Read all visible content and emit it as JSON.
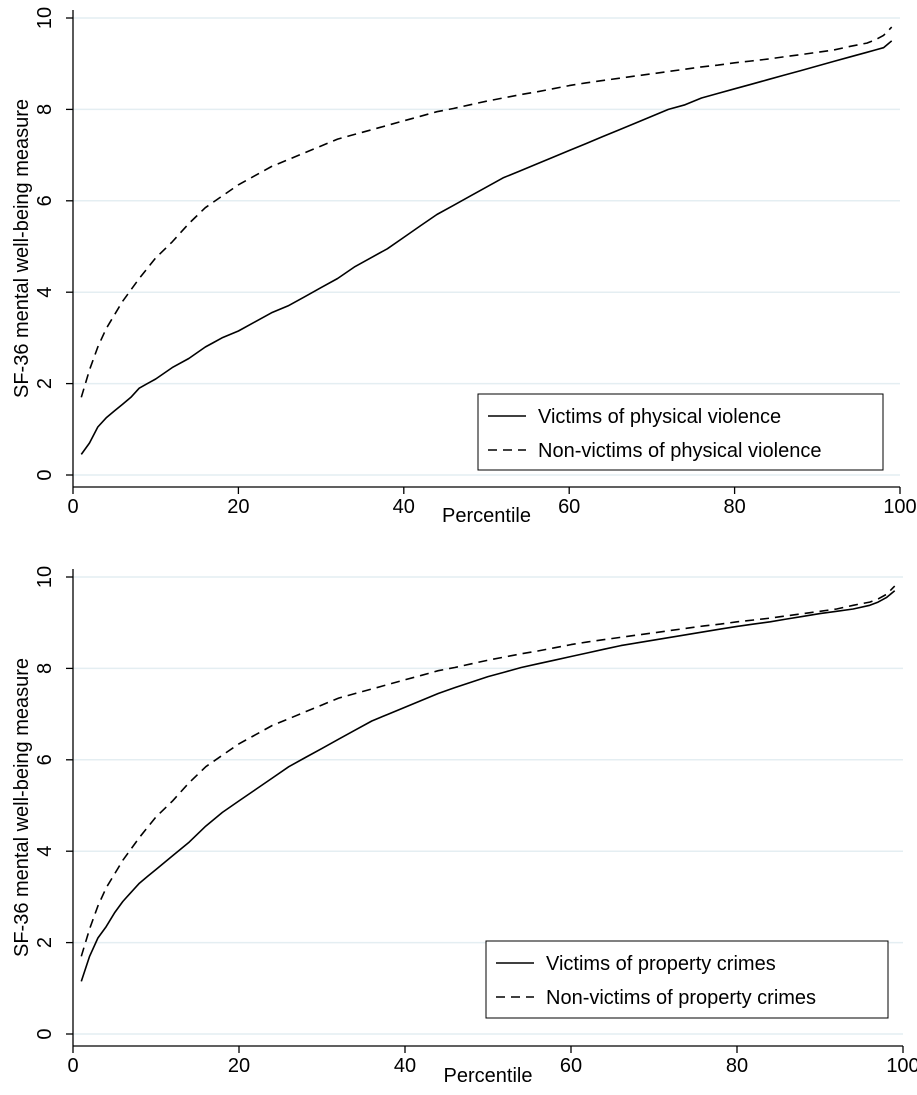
{
  "chart_data": [
    {
      "type": "line",
      "title": "",
      "xlabel": "Percentile",
      "ylabel": "SF-36 mental well-being measure",
      "xlim": [
        0,
        100
      ],
      "ylim": [
        0,
        10
      ],
      "x_ticks": [
        0,
        20,
        40,
        60,
        80,
        100
      ],
      "y_ticks": [
        0,
        2,
        4,
        6,
        8,
        10
      ],
      "grid": "horizontal",
      "legend_position": "bottom-right",
      "series": [
        {
          "name": "Victims of physical violence",
          "style": "solid",
          "x": [
            1,
            2,
            3,
            4,
            5,
            6,
            7,
            8,
            9,
            10,
            12,
            14,
            16,
            17,
            18,
            20,
            22,
            24,
            26,
            28,
            30,
            32,
            34,
            36,
            38,
            40,
            42,
            44,
            46,
            48,
            50,
            52,
            54,
            56,
            58,
            60,
            62,
            64,
            66,
            68,
            70,
            72,
            74,
            76,
            78,
            80,
            82,
            84,
            86,
            88,
            90,
            92,
            94,
            96,
            97,
            98,
            99
          ],
          "values": [
            0.45,
            0.7,
            1.05,
            1.25,
            1.4,
            1.55,
            1.7,
            1.9,
            2.0,
            2.1,
            2.35,
            2.55,
            2.8,
            2.9,
            3.0,
            3.15,
            3.35,
            3.55,
            3.7,
            3.9,
            4.1,
            4.3,
            4.55,
            4.75,
            4.95,
            5.2,
            5.45,
            5.7,
            5.9,
            6.1,
            6.3,
            6.5,
            6.65,
            6.8,
            6.95,
            7.1,
            7.25,
            7.4,
            7.55,
            7.7,
            7.85,
            8.0,
            8.1,
            8.25,
            8.35,
            8.45,
            8.55,
            8.65,
            8.75,
            8.85,
            8.95,
            9.05,
            9.15,
            9.25,
            9.3,
            9.35,
            9.5
          ]
        },
        {
          "name": "Non-victims of physical violence",
          "style": "dashed",
          "x": [
            1,
            2,
            3,
            4,
            5,
            6,
            7,
            8,
            10,
            12,
            14,
            16,
            18,
            20,
            22,
            24,
            26,
            28,
            30,
            32,
            34,
            36,
            38,
            40,
            42,
            44,
            46,
            48,
            50,
            52,
            54,
            56,
            58,
            60,
            62,
            64,
            66,
            68,
            70,
            72,
            74,
            76,
            78,
            80,
            82,
            84,
            86,
            88,
            90,
            92,
            94,
            96,
            97,
            98,
            99
          ],
          "values": [
            1.7,
            2.3,
            2.8,
            3.2,
            3.5,
            3.8,
            4.05,
            4.3,
            4.75,
            5.1,
            5.5,
            5.85,
            6.1,
            6.35,
            6.55,
            6.75,
            6.9,
            7.05,
            7.2,
            7.35,
            7.45,
            7.55,
            7.65,
            7.75,
            7.85,
            7.95,
            8.02,
            8.1,
            8.18,
            8.25,
            8.32,
            8.38,
            8.45,
            8.52,
            8.58,
            8.63,
            8.68,
            8.73,
            8.78,
            8.83,
            8.88,
            8.93,
            8.97,
            9.02,
            9.06,
            9.1,
            9.15,
            9.2,
            9.25,
            9.3,
            9.38,
            9.45,
            9.52,
            9.62,
            9.8
          ]
        }
      ]
    },
    {
      "type": "line",
      "title": "",
      "xlabel": "Percentile",
      "ylabel": "SF-36 mental well-being measure",
      "xlim": [
        0,
        100
      ],
      "ylim": [
        0,
        10
      ],
      "x_ticks": [
        0,
        20,
        40,
        60,
        80,
        100
      ],
      "y_ticks": [
        0,
        2,
        4,
        6,
        8,
        10
      ],
      "grid": "horizontal",
      "legend_position": "bottom-right",
      "series": [
        {
          "name": "Victims of property crimes",
          "style": "solid",
          "x": [
            1,
            2,
            3,
            4,
            5,
            6,
            7,
            8,
            9,
            10,
            12,
            14,
            16,
            18,
            20,
            22,
            24,
            26,
            28,
            30,
            32,
            34,
            36,
            38,
            40,
            42,
            44,
            46,
            48,
            50,
            52,
            54,
            56,
            58,
            60,
            62,
            64,
            66,
            68,
            70,
            72,
            74,
            76,
            78,
            80,
            82,
            84,
            86,
            88,
            90,
            92,
            94,
            96,
            97,
            98,
            99
          ],
          "values": [
            1.15,
            1.7,
            2.1,
            2.35,
            2.65,
            2.9,
            3.1,
            3.3,
            3.45,
            3.6,
            3.9,
            4.2,
            4.55,
            4.85,
            5.1,
            5.35,
            5.6,
            5.85,
            6.05,
            6.25,
            6.45,
            6.65,
            6.85,
            7.0,
            7.15,
            7.3,
            7.45,
            7.58,
            7.7,
            7.82,
            7.92,
            8.02,
            8.1,
            8.18,
            8.26,
            8.34,
            8.42,
            8.5,
            8.56,
            8.62,
            8.68,
            8.74,
            8.8,
            8.86,
            8.92,
            8.97,
            9.02,
            9.08,
            9.14,
            9.2,
            9.25,
            9.3,
            9.38,
            9.45,
            9.55,
            9.7
          ]
        },
        {
          "name": "Non-victims of property crimes",
          "style": "dashed",
          "x": [
            1,
            2,
            3,
            4,
            5,
            6,
            7,
            8,
            10,
            12,
            14,
            16,
            18,
            20,
            22,
            24,
            26,
            28,
            30,
            32,
            34,
            36,
            38,
            40,
            42,
            44,
            46,
            48,
            50,
            52,
            54,
            56,
            58,
            60,
            62,
            64,
            66,
            68,
            70,
            72,
            74,
            76,
            78,
            80,
            82,
            84,
            86,
            88,
            90,
            92,
            94,
            96,
            97,
            98,
            99
          ],
          "values": [
            1.7,
            2.3,
            2.8,
            3.2,
            3.5,
            3.8,
            4.05,
            4.3,
            4.75,
            5.1,
            5.5,
            5.85,
            6.1,
            6.35,
            6.55,
            6.75,
            6.9,
            7.05,
            7.2,
            7.35,
            7.45,
            7.55,
            7.65,
            7.75,
            7.85,
            7.95,
            8.02,
            8.1,
            8.18,
            8.25,
            8.32,
            8.38,
            8.45,
            8.52,
            8.58,
            8.63,
            8.68,
            8.73,
            8.78,
            8.83,
            8.88,
            8.93,
            8.97,
            9.02,
            9.06,
            9.1,
            9.15,
            9.2,
            9.25,
            9.3,
            9.38,
            9.45,
            9.52,
            9.62,
            9.8
          ]
        }
      ]
    }
  ]
}
